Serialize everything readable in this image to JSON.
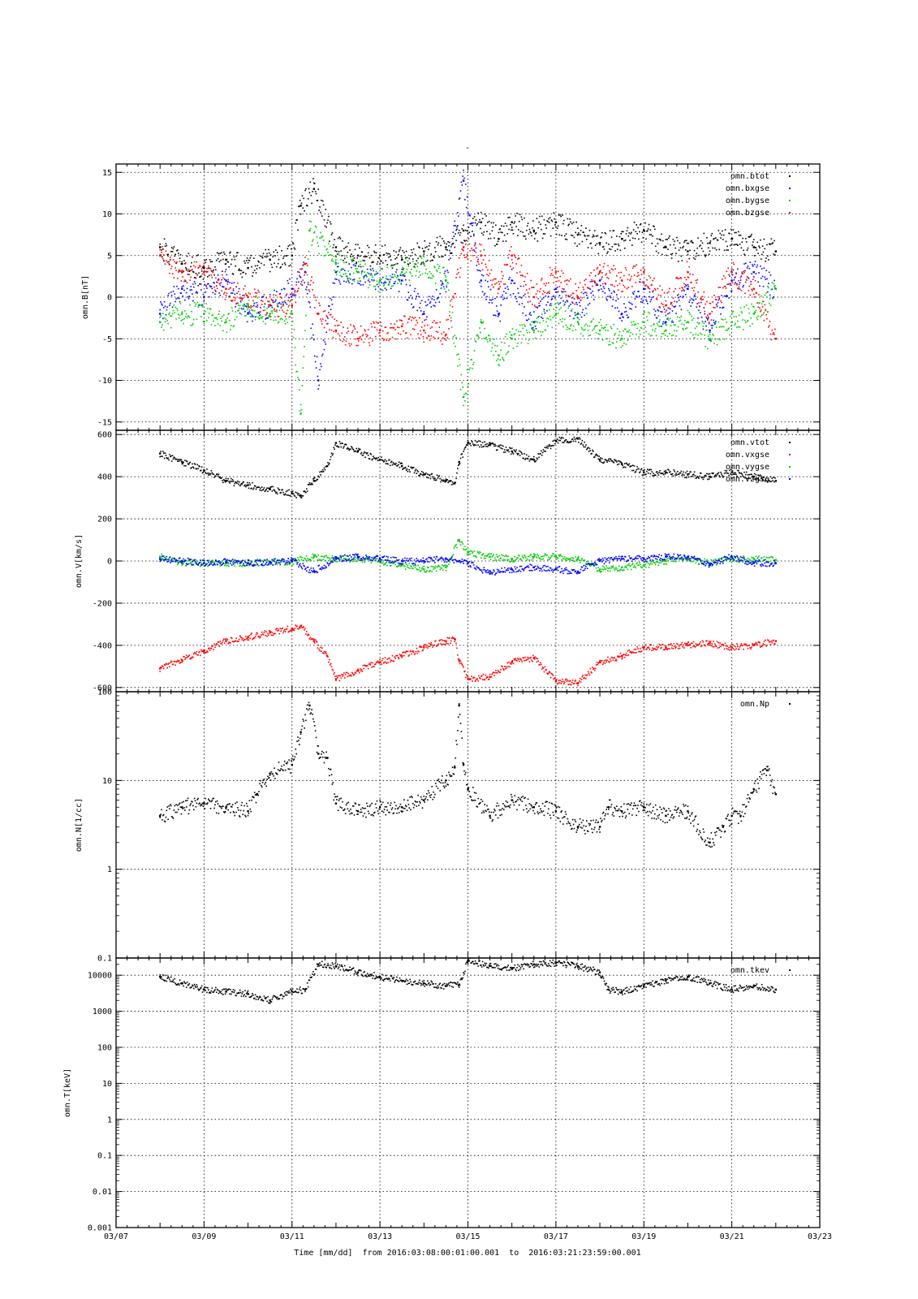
{
  "figure": {
    "title_mark": "-",
    "xaxis": {
      "tick_labels": [
        "03/07",
        "03/09",
        "03/11",
        "03/13",
        "03/15",
        "03/17",
        "03/19",
        "03/21",
        "03/23"
      ],
      "tick_days": [
        7,
        9,
        11,
        13,
        15,
        17,
        19,
        21,
        23
      ],
      "xlim_days": [
        7,
        23
      ],
      "footer": "Time [mm/dd]  from 2016:03:08:00:01:00.001  to  2016:03:21:23:59:00.001"
    }
  },
  "chart_data": [
    {
      "type": "scatter",
      "ylabel": "omn.B[nT]",
      "ylim": [
        -16,
        16
      ],
      "yscale": "linear",
      "yticks": [
        -15,
        -10,
        -5,
        0,
        5,
        10,
        15
      ],
      "ytick_labels": [
        "-15",
        "-10",
        "-5",
        "0",
        "5",
        "10",
        "15"
      ],
      "grid": true,
      "legend_position": "top-right",
      "x_unit": "day of March 2016",
      "series": [
        {
          "name": "omn.btot",
          "color": "#000000",
          "x": [
            8.0,
            8.5,
            9.0,
            9.5,
            10.0,
            10.5,
            11.0,
            11.2,
            11.5,
            12.0,
            12.5,
            13.0,
            13.5,
            14.0,
            14.5,
            14.9,
            15.3,
            15.7,
            16.0,
            16.5,
            17.0,
            17.5,
            18.0,
            18.5,
            19.0,
            19.5,
            20.0,
            20.5,
            21.0,
            21.5,
            22.0
          ],
          "y": [
            6.0,
            4.0,
            3.5,
            4.5,
            3.5,
            4.5,
            5.0,
            11.0,
            13.0,
            6.0,
            5.0,
            5.0,
            4.5,
            5.5,
            6.0,
            8.0,
            9.0,
            7.0,
            9.0,
            8.0,
            9.0,
            7.5,
            6.5,
            7.0,
            8.0,
            6.0,
            5.5,
            6.5,
            7.0,
            6.0,
            5.5
          ]
        },
        {
          "name": "omn.bxgse",
          "color": "#0000ff",
          "x": [
            8.0,
            8.5,
            9.0,
            9.5,
            10.0,
            10.5,
            11.0,
            11.3,
            11.6,
            12.0,
            12.5,
            13.0,
            13.5,
            14.0,
            14.5,
            14.9,
            15.3,
            15.7,
            16.0,
            16.5,
            17.0,
            17.5,
            18.0,
            18.5,
            19.0,
            19.5,
            20.0,
            20.5,
            21.0,
            21.5,
            22.0
          ],
          "y": [
            -2.0,
            1.0,
            0.0,
            2.0,
            -2.0,
            -1.0,
            1.0,
            3.0,
            -10.0,
            3.0,
            3.0,
            2.0,
            2.0,
            -2.0,
            2.0,
            14.0,
            2.0,
            -2.0,
            2.0,
            -3.0,
            1.0,
            -2.0,
            2.0,
            -2.0,
            1.0,
            -3.0,
            1.0,
            -4.0,
            2.0,
            3.0,
            1.0
          ]
        },
        {
          "name": "omn.bygse",
          "color": "#00cc00",
          "x": [
            8.0,
            8.5,
            9.0,
            9.5,
            10.0,
            10.5,
            11.0,
            11.2,
            11.4,
            12.0,
            12.5,
            13.0,
            13.5,
            14.0,
            14.5,
            14.9,
            15.3,
            15.7,
            16.0,
            16.5,
            17.0,
            17.5,
            18.0,
            18.5,
            19.0,
            19.5,
            20.0,
            20.5,
            21.0,
            21.5,
            22.0
          ],
          "y": [
            -3.0,
            -2.0,
            -2.0,
            -3.0,
            -1.0,
            -2.0,
            -2.0,
            -14.0,
            8.0,
            4.0,
            3.0,
            2.0,
            3.0,
            4.0,
            2.0,
            -12.0,
            -3.0,
            -7.0,
            -5.0,
            -4.0,
            -2.0,
            -3.0,
            -4.0,
            -5.0,
            -3.0,
            -4.0,
            -3.0,
            -5.0,
            -3.0,
            -2.0,
            1.0
          ]
        },
        {
          "name": "omn.bzgse",
          "color": "#ff0000",
          "x": [
            8.0,
            8.5,
            9.0,
            9.5,
            10.0,
            10.5,
            11.0,
            11.3,
            11.6,
            12.0,
            12.5,
            13.0,
            13.5,
            14.0,
            14.5,
            14.9,
            15.3,
            15.7,
            16.0,
            16.5,
            17.0,
            17.5,
            18.0,
            18.5,
            19.0,
            19.5,
            20.0,
            20.5,
            21.0,
            21.5,
            22.0
          ],
          "y": [
            5.0,
            3.0,
            3.0,
            1.0,
            0.0,
            -1.0,
            -1.0,
            4.0,
            -2.0,
            -4.0,
            -5.0,
            -4.0,
            -3.5,
            -4.0,
            -4.5,
            6.0,
            5.0,
            1.0,
            5.0,
            0.0,
            3.0,
            0.0,
            3.0,
            2.0,
            3.0,
            -1.0,
            3.0,
            -2.0,
            3.0,
            1.0,
            -5.0
          ]
        }
      ]
    },
    {
      "type": "scatter",
      "ylabel": "omn.V[km/s]",
      "ylim": [
        -620,
        620
      ],
      "yscale": "linear",
      "yticks": [
        -600,
        -400,
        -200,
        0,
        200,
        400,
        600
      ],
      "ytick_labels": [
        "-600",
        "-400",
        "-200",
        "0",
        "200",
        "400",
        "600"
      ],
      "grid": true,
      "legend_position": "top-right",
      "x_unit": "day of March 2016",
      "series": [
        {
          "name": "omn.vtot",
          "color": "#000000",
          "x": [
            8.0,
            8.5,
            9.0,
            9.5,
            10.0,
            10.5,
            11.0,
            11.2,
            11.5,
            11.8,
            12.0,
            12.5,
            13.0,
            13.5,
            14.0,
            14.5,
            14.7,
            14.8,
            15.0,
            15.5,
            16.0,
            16.5,
            17.0,
            17.5,
            18.0,
            18.5,
            19.0,
            19.5,
            20.0,
            20.5,
            21.0,
            21.5,
            22.0
          ],
          "y": [
            510,
            470,
            430,
            380,
            360,
            340,
            320,
            310,
            380,
            450,
            560,
            520,
            480,
            450,
            410,
            380,
            370,
            470,
            560,
            550,
            520,
            480,
            570,
            580,
            480,
            460,
            420,
            420,
            410,
            400,
            420,
            400,
            380
          ]
        },
        {
          "name": "omn.vxgse",
          "color": "#ff0000",
          "x": [
            8.0,
            8.5,
            9.0,
            9.5,
            10.0,
            10.5,
            11.0,
            11.2,
            11.5,
            11.8,
            12.0,
            12.5,
            13.0,
            13.5,
            14.0,
            14.5,
            14.7,
            14.8,
            15.0,
            15.5,
            16.0,
            16.5,
            17.0,
            17.5,
            18.0,
            18.5,
            19.0,
            19.5,
            20.0,
            20.5,
            21.0,
            21.5,
            22.0
          ],
          "y": [
            -510,
            -470,
            -430,
            -380,
            -360,
            -340,
            -320,
            -310,
            -380,
            -450,
            -560,
            -520,
            -480,
            -450,
            -410,
            -380,
            -370,
            -470,
            -560,
            -550,
            -480,
            -460,
            -570,
            -580,
            -480,
            -450,
            -410,
            -410,
            -400,
            -390,
            -410,
            -400,
            -380
          ]
        },
        {
          "name": "omn.vygse",
          "color": "#00cc00",
          "x": [
            8.0,
            8.5,
            9.0,
            9.5,
            10.0,
            10.5,
            11.0,
            11.5,
            12.0,
            12.5,
            13.0,
            13.5,
            14.0,
            14.5,
            14.8,
            15.0,
            15.5,
            16.0,
            16.5,
            17.0,
            17.5,
            18.0,
            18.5,
            19.0,
            19.5,
            20.0,
            20.5,
            21.0,
            21.5,
            22.0
          ],
          "y": [
            20,
            -10,
            -10,
            -10,
            -10,
            -5,
            -5,
            20,
            10,
            10,
            0,
            -20,
            -40,
            -30,
            100,
            40,
            20,
            10,
            20,
            20,
            10,
            -40,
            -30,
            -20,
            0,
            10,
            -10,
            10,
            10,
            5
          ]
        },
        {
          "name": "omn.vzgse",
          "color": "#0000ff",
          "x": [
            8.0,
            8.5,
            9.0,
            9.5,
            10.0,
            10.5,
            11.0,
            11.5,
            12.0,
            12.5,
            13.0,
            13.5,
            14.0,
            14.5,
            14.8,
            15.0,
            15.5,
            16.0,
            16.5,
            17.0,
            17.5,
            18.0,
            18.5,
            19.0,
            19.5,
            20.0,
            20.5,
            21.0,
            21.5,
            22.0
          ],
          "y": [
            10,
            0,
            -10,
            -5,
            -10,
            -5,
            0,
            -50,
            10,
            20,
            10,
            0,
            0,
            10,
            0,
            -10,
            -60,
            -40,
            -30,
            -40,
            -50,
            0,
            10,
            10,
            20,
            20,
            -20,
            20,
            -10,
            -10
          ]
        }
      ]
    },
    {
      "type": "scatter",
      "ylabel": "omn.N[1/cc]",
      "ylim": [
        0.1,
        100
      ],
      "yscale": "log",
      "yticks": [
        0.1,
        1,
        10,
        100
      ],
      "ytick_labels": [
        "0.1",
        "1",
        "10",
        "100"
      ],
      "grid": true,
      "legend_position": "top-right",
      "x_unit": "day of March 2016",
      "series": [
        {
          "name": "omn.Np",
          "color": "#000000",
          "x": [
            8.0,
            8.5,
            9.0,
            9.5,
            10.0,
            10.2,
            10.5,
            11.0,
            11.2,
            11.4,
            11.6,
            11.8,
            12.0,
            12.5,
            13.0,
            13.5,
            14.0,
            14.5,
            14.7,
            14.8,
            14.9,
            15.0,
            15.5,
            16.0,
            16.5,
            17.0,
            17.5,
            18.0,
            18.2,
            18.5,
            19.0,
            19.5,
            20.0,
            20.5,
            20.8,
            21.0,
            21.2,
            21.5,
            21.8,
            22.0
          ],
          "y": [
            4.0,
            5.0,
            5.5,
            5.0,
            4.5,
            7.0,
            12.0,
            15.0,
            35.0,
            70.0,
            20.0,
            18.0,
            5.5,
            4.5,
            5.0,
            5.0,
            6.0,
            10.0,
            14.0,
            70.0,
            15.0,
            8.0,
            4.0,
            6.0,
            5.0,
            4.5,
            3.0,
            3.0,
            5.0,
            4.5,
            5.0,
            4.0,
            4.5,
            2.0,
            3.0,
            4.0,
            4.0,
            8.0,
            13.0,
            7.0
          ]
        }
      ]
    },
    {
      "type": "scatter",
      "ylabel": "omn.T[keV]",
      "ylim": [
        0.001,
        30000
      ],
      "yscale": "log",
      "yticks": [
        0.001,
        0.01,
        0.1,
        1,
        10,
        100,
        1000,
        10000
      ],
      "ytick_labels": [
        "0.001",
        "0.01",
        "0.1",
        "1",
        "10",
        "100",
        "1000",
        "10000"
      ],
      "grid": true,
      "legend_position": "top-right",
      "x_unit": "day of March 2016",
      "series": [
        {
          "name": "omn.tkev",
          "color": "#000000",
          "x": [
            8.0,
            8.5,
            9.0,
            9.5,
            10.0,
            10.5,
            11.0,
            11.3,
            11.6,
            12.0,
            12.5,
            13.0,
            13.5,
            14.0,
            14.5,
            14.8,
            15.0,
            15.5,
            16.0,
            16.5,
            17.0,
            17.5,
            18.0,
            18.2,
            18.5,
            19.0,
            19.5,
            20.0,
            20.5,
            21.0,
            21.5,
            22.0
          ],
          "y": [
            9000,
            6000,
            4000,
            3500,
            3000,
            2000,
            3500,
            4000,
            20000,
            18000,
            12000,
            9000,
            7000,
            6000,
            5000,
            5500,
            25000,
            18000,
            15000,
            20000,
            22000,
            18000,
            12000,
            4000,
            3500,
            5000,
            7000,
            9000,
            6000,
            4000,
            5000,
            4000
          ]
        }
      ]
    }
  ]
}
